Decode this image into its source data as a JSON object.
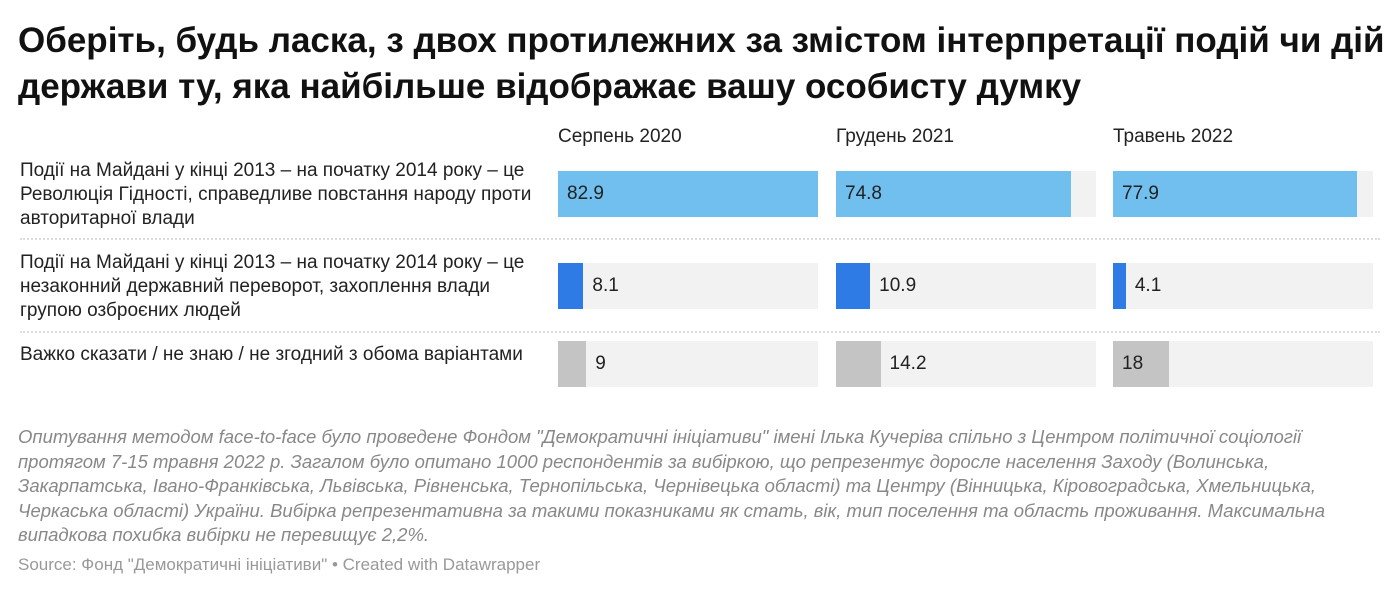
{
  "title": "Оберіть, будь ласка, з двох протилежних за змістом інтерпретації подій чи дій держави ту, яка найбільше відображає вашу особисту думку",
  "chart_data": {
    "type": "bar",
    "columns": [
      "Серпень 2020",
      "Грудень 2021",
      "Травень 2022"
    ],
    "rows": [
      {
        "label": "Події на Майдані у кінці 2013 – на початку 2014 року – це Революція Гідності, справедливе повстання народу проти авторитарної влади",
        "color": "#71bfee",
        "values": [
          82.9,
          74.8,
          77.9
        ]
      },
      {
        "label": "Події на Майдані у кінці 2013 – на початку 2014 року – це незаконний державний переворот, захоплення влади групою озброєних людей",
        "color": "#2e7be6",
        "values": [
          8.1,
          10.9,
          4.1
        ]
      },
      {
        "label": "Важко сказати / не знаю / не згодний з обома варіантами",
        "color": "#c4c4c4",
        "values": [
          9,
          14.2,
          18
        ]
      }
    ],
    "xlim": [
      0,
      82.9
    ],
    "background_color": "#f2f2f2"
  },
  "notes": "Опитування методом face-to-face було проведене Фондом \"Демократичні ініціативи\" імені Ілька Кучеріва спільно з Центром політичної соціології протягом 7-15 травня 2022 р. Загалом було опитано 1000 респондентів за вибіркою, що репрезентує доросле населення Заходу (Волинська, Закарпатська, Івано-Франківська, Львівська, Рівненська, Тернопільська, Чернівецька області) та Центру (Вінницька, Кіровоградська, Хмельницька, Черкаська області) України. Вибірка репрезентативна за такими показниками як стать, вік, тип поселення та область проживання. Максимальна випадкова похибка вибірки не перевищує 2,2%.",
  "source": "Source: Фонд \"Демократичні ініціативи\" • Created with Datawrapper"
}
